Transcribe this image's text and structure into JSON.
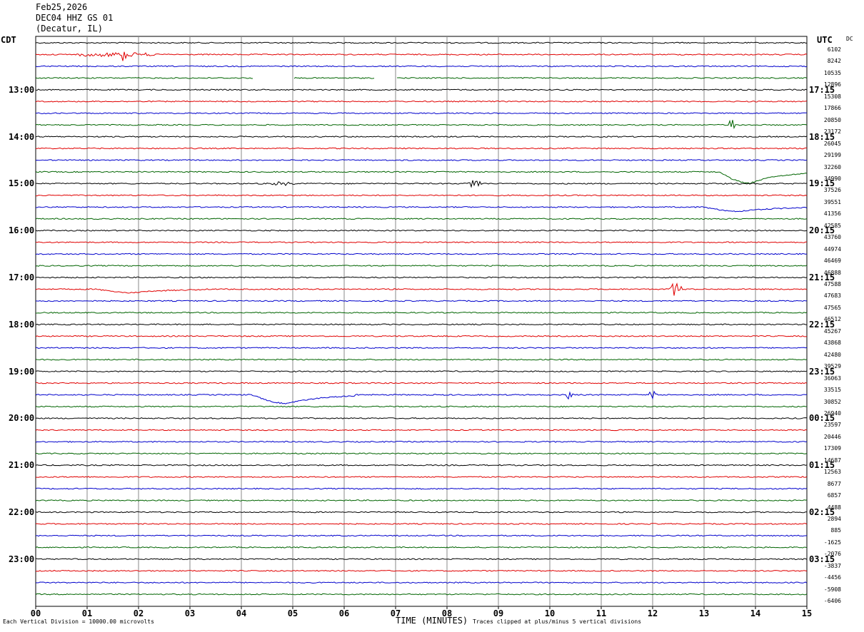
{
  "header": {
    "date": "Feb25,2026",
    "station": "DEC04 HHZ GS 01",
    "location": "(Decatur, IL)"
  },
  "corner_left": "CDT",
  "corner_right": "UTC",
  "dc_header": "DC",
  "footer": {
    "scale_note": "Each Vertical Division = 10000.00 microvolts",
    "xlabel": "TIME (MINUTES)",
    "clip_note": "Traces clipped at plus/minus 5 vertical divisions"
  },
  "colors": {
    "black": "#000000",
    "red": "#e00000",
    "blue": "#0000cc",
    "green": "#006400",
    "grid": "#888888"
  },
  "chart_data": {
    "type": "line",
    "title": "DEC04 HHZ GS 01",
    "xlabel": "TIME (MINUTES)",
    "xlim": [
      0,
      15
    ],
    "x_ticks": [
      "00",
      "01",
      "02",
      "03",
      "04",
      "05",
      "06",
      "07",
      "08",
      "09",
      "10",
      "11",
      "12",
      "13",
      "14",
      "15"
    ],
    "row_minutes": 15,
    "color_cycle": [
      "black",
      "red",
      "blue",
      "green"
    ],
    "left_labels": [
      "13:00",
      "14:00",
      "15:00",
      "16:00",
      "17:00",
      "18:00",
      "19:00",
      "20:00",
      "21:00",
      "22:00",
      "23:00"
    ],
    "right_labels": [
      "17:15",
      "18:15",
      "19:15",
      "20:15",
      "21:15",
      "22:15",
      "23:15",
      "00:15",
      "01:15",
      "02:15",
      "03:15"
    ],
    "label_first_row": 4,
    "label_every_rows": 4,
    "dc_offsets": [
      "6102",
      "8242",
      "10535",
      "12896",
      "15308",
      "17866",
      "20850",
      "23172",
      "26045",
      "29199",
      "32260",
      "34990",
      "37526",
      "39551",
      "41356",
      "42585",
      "43760",
      "44974",
      "46469",
      "46888",
      "47588",
      "47683",
      "47565",
      "46512",
      "45267",
      "43868",
      "42480",
      "39529",
      "36063",
      "33515",
      "30852",
      "26940",
      "23597",
      "20446",
      "17309",
      "14687",
      "12563",
      "8677",
      "6857",
      "4488",
      "2894",
      "885",
      "-1625",
      "-2076",
      "-3837",
      "-4456",
      "-5908",
      "-6406"
    ],
    "events": [
      {
        "row": 1,
        "start": 0.5,
        "end": 2.6,
        "amp": 6,
        "type": "burst"
      },
      {
        "row": 1,
        "start": 1.6,
        "end": 1.8,
        "amp": 12,
        "type": "spike"
      },
      {
        "row": 3,
        "start": 4.25,
        "end": 5.0,
        "type": "gap"
      },
      {
        "row": 3,
        "start": 6.6,
        "end": 7.0,
        "type": "gap"
      },
      {
        "row": 7,
        "start": 13.45,
        "end": 13.65,
        "amp": 8,
        "type": "spike"
      },
      {
        "row": 11,
        "start": 13.3,
        "end": 15.0,
        "amp": 16,
        "type": "swell"
      },
      {
        "row": 12,
        "start": 4.5,
        "end": 5.1,
        "amp": 5,
        "type": "burst"
      },
      {
        "row": 12,
        "start": 8.4,
        "end": 8.7,
        "amp": 8,
        "type": "spike"
      },
      {
        "row": 14,
        "start": 13.0,
        "end": 15.0,
        "amp": 6,
        "type": "swell"
      },
      {
        "row": 21,
        "start": 1.2,
        "end": 3.2,
        "amp": 5,
        "type": "swell"
      },
      {
        "row": 21,
        "start": 12.3,
        "end": 12.6,
        "amp": 10,
        "type": "spike"
      },
      {
        "row": 30,
        "start": 4.2,
        "end": 6.2,
        "amp": 12,
        "type": "swell"
      },
      {
        "row": 30,
        "start": 10.3,
        "end": 10.5,
        "amp": 8,
        "type": "spike"
      },
      {
        "row": 30,
        "start": 11.9,
        "end": 12.1,
        "amp": 6,
        "type": "spike"
      }
    ]
  }
}
